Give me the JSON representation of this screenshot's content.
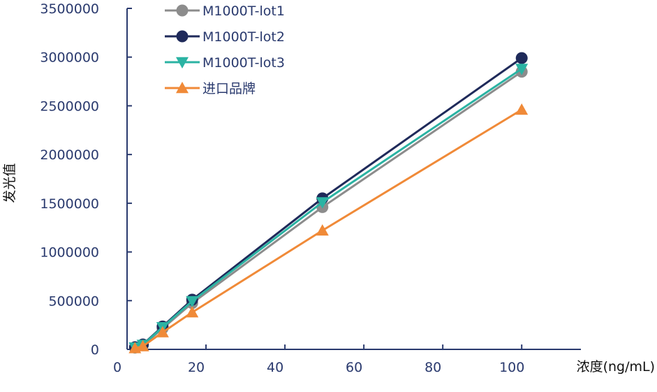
{
  "chart_data": {
    "type": "line",
    "title": "",
    "xlabel": "浓度(ng/mL)",
    "ylabel": "发光值",
    "xlim": [
      0,
      115
    ],
    "ylim": [
      0,
      3500000
    ],
    "xticks": [
      0,
      20,
      40,
      60,
      80,
      100
    ],
    "yticks": [
      0,
      500000,
      1000000,
      1500000,
      2000000,
      2500000,
      3000000,
      3500000
    ],
    "xtick_labels": [
      "0",
      "20",
      "40",
      "60",
      "80",
      "100"
    ],
    "ytick_labels": [
      "0",
      "500000",
      "1000000",
      "1500000",
      "2000000",
      "2500000",
      "3000000",
      "3500000"
    ],
    "grid": false,
    "legend_position": "top-left",
    "series": [
      {
        "name": "M1000T-lot1",
        "color": "#8c8c8c",
        "marker": "circle",
        "x": [
          2,
          4,
          9,
          16.5,
          49.5,
          100
        ],
        "y": [
          18000,
          42000,
          215000,
          475000,
          1460000,
          2850000
        ]
      },
      {
        "name": "M1000T-lot2",
        "color": "#1f2a5a",
        "marker": "circle",
        "x": [
          2,
          4,
          9,
          16.5,
          49.5,
          100
        ],
        "y": [
          22000,
          50000,
          235000,
          510000,
          1550000,
          2990000
        ]
      },
      {
        "name": "M1000T-lot3",
        "color": "#2bb3a3",
        "marker": "triangle-down",
        "x": [
          2,
          4,
          9,
          16.5,
          49.5,
          100
        ],
        "y": [
          20000,
          47000,
          228000,
          495000,
          1510000,
          2880000
        ]
      },
      {
        "name": "进口品牌",
        "color": "#f08a38",
        "marker": "triangle-up",
        "x": [
          2,
          4,
          9,
          16.5,
          49.5,
          100
        ],
        "y": [
          12000,
          32000,
          175000,
          380000,
          1220000,
          2460000
        ]
      }
    ]
  }
}
